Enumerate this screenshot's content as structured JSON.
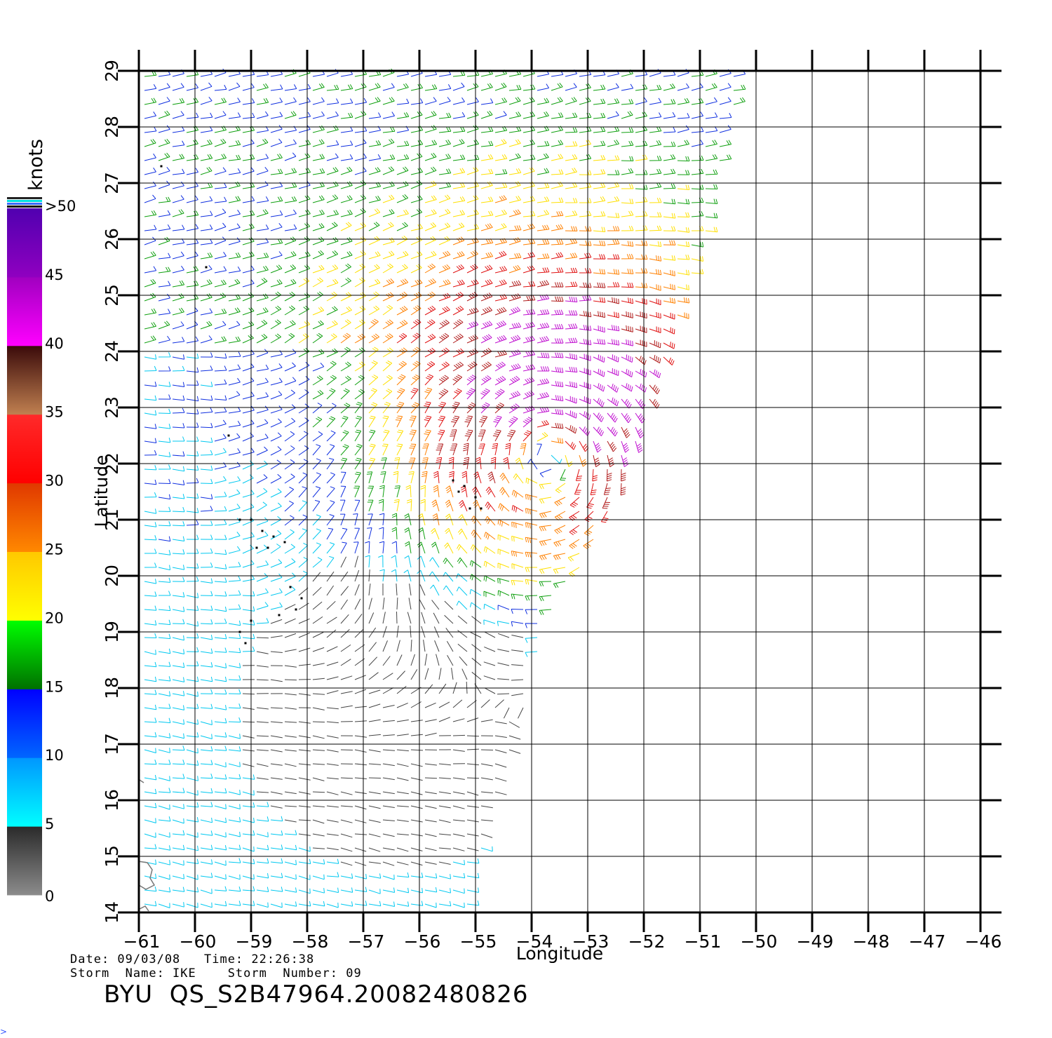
{
  "colorbar": {
    "unit_label": "knots",
    "segments": [
      {
        "from": 0,
        "to": 5,
        "top": "#2a2a2a",
        "bottom": "#8c8c8c"
      },
      {
        "from": 5,
        "to": 10,
        "top": "#0096ff",
        "bottom": "#00ffff"
      },
      {
        "from": 10,
        "to": 15,
        "top": "#0000ff",
        "bottom": "#0066ff"
      },
      {
        "from": 15,
        "to": 20,
        "top": "#00ff00",
        "bottom": "#007000"
      },
      {
        "from": 20,
        "to": 25,
        "top": "#ffc800",
        "bottom": "#ffff00"
      },
      {
        "from": 25,
        "to": 30,
        "top": "#e03800",
        "bottom": "#ff8800"
      },
      {
        "from": 30,
        "to": 35,
        "top": "#ff2a2a",
        "bottom": "#ff0000"
      },
      {
        "from": 35,
        "to": 40,
        "top": "#3a0a0a",
        "bottom": "#c08050"
      },
      {
        "from": 40,
        "to": 45,
        "top": "#a000c0",
        "bottom": "#ff00ff"
      },
      {
        "from": 45,
        "to": 50,
        "top": "#5000b0",
        "bottom": "#9000c0"
      }
    ],
    "tick_labels": [
      "0",
      "5",
      "10",
      "15",
      "20",
      "25",
      "30",
      "35",
      "40",
      "45",
      ">50"
    ]
  },
  "axes": {
    "xlabel": "Longitude",
    "ylabel": "Latitude",
    "lon_min": -61,
    "lon_max": -46,
    "lat_min": 14,
    "lat_max": 29,
    "lon_ticks": [
      -61,
      -60,
      -59,
      -58,
      -57,
      -56,
      -55,
      -54,
      -53,
      -52,
      -51,
      -50,
      -49,
      -48,
      -47,
      -46
    ],
    "lat_ticks": [
      14,
      15,
      16,
      17,
      18,
      19,
      20,
      21,
      22,
      23,
      24,
      25,
      26,
      27,
      28,
      29
    ],
    "grid": true
  },
  "storm_field": {
    "center_lon": -53.7,
    "center_lat": 22.2,
    "max_speed_kt": 42,
    "swath_east_edge": [
      {
        "lat": 14.0,
        "lon": -55.1
      },
      {
        "lat": 15.5,
        "lon": -54.8
      },
      {
        "lat": 17.0,
        "lon": -54.3
      },
      {
        "lat": 18.5,
        "lon": -53.9
      },
      {
        "lat": 19.5,
        "lon": -53.6
      },
      {
        "lat": 20.5,
        "lon": -52.9
      },
      {
        "lat": 22.0,
        "lon": -52.2
      },
      {
        "lat": 23.5,
        "lon": -51.7
      },
      {
        "lat": 25.0,
        "lon": -51.2
      },
      {
        "lat": 26.5,
        "lon": -50.8
      },
      {
        "lat": 27.5,
        "lon": -50.6
      },
      {
        "lat": 28.8,
        "lon": -50.3
      }
    ]
  },
  "caption": {
    "date_line": "Date: 09/03/08   Time: 22:26:38",
    "storm_line": "Storm  Name: IKE    Storm  Number: 09",
    "product_id": "BYU  QS_S2B47964.20082480826",
    "corner_mark": ">"
  }
}
